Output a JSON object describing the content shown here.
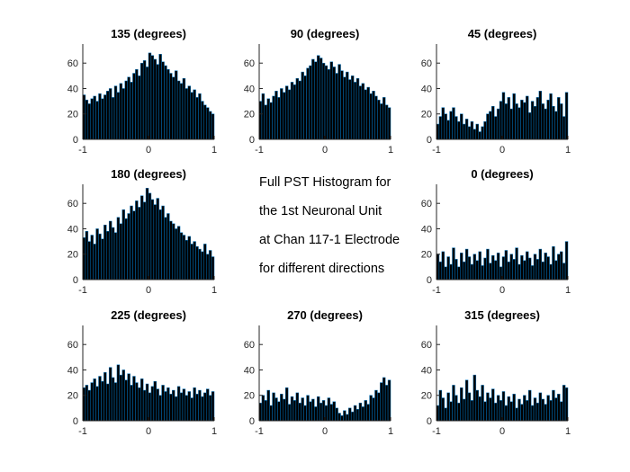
{
  "figure": {
    "center_text": [
      "Full PST Histogram for",
      "the 1st Neuronal Unit",
      "at Chan 117-1 Electrode",
      "for different directions"
    ]
  },
  "chart_data": [
    {
      "type": "bar",
      "panel": "top-left",
      "title": "135 (degrees)",
      "xlim": [
        -1,
        1
      ],
      "ylim": [
        0,
        75
      ],
      "xticks": [
        "-1",
        "0",
        "1"
      ],
      "yticks": [
        "0",
        "20",
        "40",
        "60"
      ],
      "x": [
        -0.98,
        -0.94,
        -0.9,
        -0.86,
        -0.82,
        -0.78,
        -0.74,
        -0.7,
        -0.66,
        -0.62,
        -0.58,
        -0.54,
        -0.5,
        -0.46,
        -0.42,
        -0.38,
        -0.34,
        -0.3,
        -0.26,
        -0.22,
        -0.18,
        -0.14,
        -0.1,
        -0.06,
        -0.02,
        0.02,
        0.06,
        0.1,
        0.14,
        0.18,
        0.22,
        0.26,
        0.3,
        0.34,
        0.38,
        0.42,
        0.46,
        0.5,
        0.54,
        0.58,
        0.62,
        0.66,
        0.7,
        0.74,
        0.78,
        0.82,
        0.86,
        0.9,
        0.94,
        0.98
      ],
      "values": [
        35,
        31,
        28,
        32,
        34,
        30,
        36,
        32,
        35,
        38,
        40,
        33,
        42,
        37,
        44,
        40,
        46,
        49,
        45,
        52,
        55,
        50,
        60,
        62,
        57,
        68,
        66,
        63,
        59,
        67,
        61,
        58,
        55,
        52,
        49,
        54,
        46,
        44,
        48,
        40,
        42,
        37,
        39,
        33,
        36,
        30,
        27,
        25,
        22,
        20
      ]
    },
    {
      "type": "bar",
      "panel": "top-center",
      "title": "90 (degrees)",
      "xlim": [
        -1,
        1
      ],
      "ylim": [
        0,
        75
      ],
      "xticks": [
        "-1",
        "0",
        "1"
      ],
      "yticks": [
        "0",
        "20",
        "40",
        "60"
      ],
      "x": [
        -0.98,
        -0.94,
        -0.9,
        -0.86,
        -0.82,
        -0.78,
        -0.74,
        -0.7,
        -0.66,
        -0.62,
        -0.58,
        -0.54,
        -0.5,
        -0.46,
        -0.42,
        -0.38,
        -0.34,
        -0.3,
        -0.26,
        -0.22,
        -0.18,
        -0.14,
        -0.1,
        -0.06,
        -0.02,
        0.02,
        0.06,
        0.1,
        0.14,
        0.18,
        0.22,
        0.26,
        0.3,
        0.34,
        0.38,
        0.42,
        0.46,
        0.5,
        0.54,
        0.58,
        0.62,
        0.66,
        0.7,
        0.74,
        0.78,
        0.82,
        0.86,
        0.9,
        0.94,
        0.98
      ],
      "values": [
        30,
        36,
        27,
        32,
        29,
        34,
        38,
        33,
        40,
        37,
        42,
        39,
        45,
        43,
        48,
        46,
        53,
        50,
        56,
        58,
        63,
        61,
        66,
        64,
        60,
        58,
        55,
        61,
        57,
        52,
        59,
        54,
        49,
        53,
        47,
        50,
        45,
        48,
        42,
        44,
        39,
        41,
        36,
        38,
        34,
        31,
        28,
        33,
        27,
        25
      ]
    },
    {
      "type": "bar",
      "panel": "top-right",
      "title": "45 (degrees)",
      "xlim": [
        -1,
        1
      ],
      "ylim": [
        0,
        75
      ],
      "xticks": [
        "-1",
        "0",
        "1"
      ],
      "yticks": [
        "0",
        "20",
        "40",
        "60"
      ],
      "x": [
        -0.98,
        -0.94,
        -0.9,
        -0.86,
        -0.82,
        -0.78,
        -0.74,
        -0.7,
        -0.66,
        -0.62,
        -0.58,
        -0.54,
        -0.5,
        -0.46,
        -0.42,
        -0.38,
        -0.34,
        -0.3,
        -0.26,
        -0.22,
        -0.18,
        -0.14,
        -0.1,
        -0.06,
        -0.02,
        0.02,
        0.06,
        0.1,
        0.14,
        0.18,
        0.22,
        0.26,
        0.3,
        0.34,
        0.38,
        0.42,
        0.46,
        0.5,
        0.54,
        0.58,
        0.62,
        0.66,
        0.7,
        0.74,
        0.78,
        0.82,
        0.86,
        0.9,
        0.94,
        0.98
      ],
      "values": [
        12,
        18,
        25,
        20,
        15,
        22,
        25,
        18,
        14,
        20,
        12,
        16,
        10,
        14,
        8,
        12,
        6,
        10,
        14,
        20,
        22,
        26,
        18,
        24,
        30,
        37,
        28,
        33,
        24,
        36,
        28,
        25,
        31,
        29,
        34,
        21,
        30,
        26,
        33,
        38,
        28,
        24,
        31,
        36,
        26,
        22,
        33,
        28,
        18,
        37
      ]
    },
    {
      "type": "bar",
      "panel": "middle-left",
      "title": "180 (degrees)",
      "xlim": [
        -1,
        1
      ],
      "ylim": [
        0,
        75
      ],
      "xticks": [
        "-1",
        "0",
        "1"
      ],
      "yticks": [
        "0",
        "20",
        "40",
        "60"
      ],
      "x": [
        -0.98,
        -0.94,
        -0.9,
        -0.86,
        -0.82,
        -0.78,
        -0.74,
        -0.7,
        -0.66,
        -0.62,
        -0.58,
        -0.54,
        -0.5,
        -0.46,
        -0.42,
        -0.38,
        -0.34,
        -0.3,
        -0.26,
        -0.22,
        -0.18,
        -0.14,
        -0.1,
        -0.06,
        -0.02,
        0.02,
        0.06,
        0.1,
        0.14,
        0.18,
        0.22,
        0.26,
        0.3,
        0.34,
        0.38,
        0.42,
        0.46,
        0.5,
        0.54,
        0.58,
        0.62,
        0.66,
        0.7,
        0.74,
        0.78,
        0.82,
        0.86,
        0.9,
        0.94,
        0.98
      ],
      "values": [
        33,
        38,
        30,
        35,
        28,
        40,
        36,
        32,
        43,
        38,
        46,
        41,
        37,
        49,
        44,
        55,
        48,
        52,
        58,
        54,
        62,
        57,
        66,
        61,
        72,
        68,
        63,
        59,
        64,
        55,
        58,
        49,
        52,
        46,
        44,
        40,
        42,
        37,
        35,
        31,
        34,
        28,
        30,
        26,
        24,
        22,
        28,
        20,
        23,
        18
      ]
    },
    {
      "type": "bar",
      "panel": "middle-right",
      "title": "0 (degrees)",
      "xlim": [
        -1,
        1
      ],
      "ylim": [
        0,
        75
      ],
      "xticks": [
        "-1",
        "0",
        "1"
      ],
      "yticks": [
        "0",
        "20",
        "40",
        "60"
      ],
      "x": [
        -0.98,
        -0.94,
        -0.9,
        -0.86,
        -0.82,
        -0.78,
        -0.74,
        -0.7,
        -0.66,
        -0.62,
        -0.58,
        -0.54,
        -0.5,
        -0.46,
        -0.42,
        -0.38,
        -0.34,
        -0.3,
        -0.26,
        -0.22,
        -0.18,
        -0.14,
        -0.1,
        -0.06,
        -0.02,
        0.02,
        0.06,
        0.1,
        0.14,
        0.18,
        0.22,
        0.26,
        0.3,
        0.34,
        0.38,
        0.42,
        0.46,
        0.5,
        0.54,
        0.58,
        0.62,
        0.66,
        0.7,
        0.74,
        0.78,
        0.82,
        0.86,
        0.9,
        0.94,
        0.98
      ],
      "values": [
        20,
        14,
        22,
        10,
        18,
        12,
        25,
        16,
        10,
        21,
        14,
        24,
        18,
        12,
        20,
        15,
        22,
        11,
        17,
        24,
        13,
        19,
        15,
        21,
        10,
        18,
        23,
        14,
        20,
        16,
        25,
        12,
        19,
        15,
        22,
        17,
        11,
        20,
        16,
        24,
        14,
        21,
        18,
        12,
        26,
        15,
        20,
        22,
        13,
        30
      ]
    },
    {
      "type": "bar",
      "panel": "bottom-left",
      "title": "225 (degrees)",
      "xlim": [
        -1,
        1
      ],
      "ylim": [
        0,
        75
      ],
      "xticks": [
        "-1",
        "0",
        "1"
      ],
      "yticks": [
        "0",
        "20",
        "40",
        "60"
      ],
      "x": [
        -0.98,
        -0.94,
        -0.9,
        -0.86,
        -0.82,
        -0.78,
        -0.74,
        -0.7,
        -0.66,
        -0.62,
        -0.58,
        -0.54,
        -0.5,
        -0.46,
        -0.42,
        -0.38,
        -0.34,
        -0.3,
        -0.26,
        -0.22,
        -0.18,
        -0.14,
        -0.1,
        -0.06,
        -0.02,
        0.02,
        0.06,
        0.1,
        0.14,
        0.18,
        0.22,
        0.26,
        0.3,
        0.34,
        0.38,
        0.42,
        0.46,
        0.5,
        0.54,
        0.58,
        0.62,
        0.66,
        0.7,
        0.74,
        0.78,
        0.82,
        0.86,
        0.9,
        0.94,
        0.98
      ],
      "values": [
        26,
        28,
        24,
        30,
        33,
        27,
        35,
        31,
        38,
        29,
        42,
        34,
        30,
        44,
        36,
        40,
        32,
        37,
        28,
        35,
        30,
        26,
        33,
        24,
        29,
        22,
        27,
        31,
        25,
        20,
        28,
        23,
        26,
        21,
        24,
        19,
        27,
        22,
        25,
        20,
        23,
        18,
        26,
        21,
        24,
        19,
        22,
        25,
        20,
        23
      ]
    },
    {
      "type": "bar",
      "panel": "bottom-center",
      "title": "270 (degrees)",
      "xlim": [
        -1,
        1
      ],
      "ylim": [
        0,
        75
      ],
      "xticks": [
        "-1",
        "0",
        "1"
      ],
      "yticks": [
        "0",
        "20",
        "40",
        "60"
      ],
      "x": [
        -0.98,
        -0.94,
        -0.9,
        -0.86,
        -0.82,
        -0.78,
        -0.74,
        -0.7,
        -0.66,
        -0.62,
        -0.58,
        -0.54,
        -0.5,
        -0.46,
        -0.42,
        -0.38,
        -0.34,
        -0.3,
        -0.26,
        -0.22,
        -0.18,
        -0.14,
        -0.1,
        -0.06,
        -0.02,
        0.02,
        0.06,
        0.1,
        0.14,
        0.18,
        0.22,
        0.26,
        0.3,
        0.34,
        0.38,
        0.42,
        0.46,
        0.5,
        0.54,
        0.58,
        0.62,
        0.66,
        0.7,
        0.74,
        0.78,
        0.82,
        0.86,
        0.9,
        0.94,
        0.98
      ],
      "values": [
        14,
        20,
        16,
        24,
        12,
        22,
        18,
        15,
        21,
        17,
        26,
        13,
        19,
        16,
        22,
        14,
        18,
        12,
        20,
        15,
        17,
        11,
        19,
        14,
        16,
        12,
        18,
        13,
        15,
        10,
        6,
        4,
        8,
        5,
        10,
        7,
        12,
        9,
        14,
        11,
        16,
        13,
        20,
        18,
        24,
        22,
        30,
        34,
        28,
        32
      ]
    },
    {
      "type": "bar",
      "panel": "bottom-right",
      "title": "315 (degrees)",
      "xlim": [
        -1,
        1
      ],
      "ylim": [
        0,
        75
      ],
      "xticks": [
        "-1",
        "0",
        "1"
      ],
      "yticks": [
        "0",
        "20",
        "40",
        "60"
      ],
      "x": [
        -0.98,
        -0.94,
        -0.9,
        -0.86,
        -0.82,
        -0.78,
        -0.74,
        -0.7,
        -0.66,
        -0.62,
        -0.58,
        -0.54,
        -0.5,
        -0.46,
        -0.42,
        -0.38,
        -0.34,
        -0.3,
        -0.26,
        -0.22,
        -0.18,
        -0.14,
        -0.1,
        -0.06,
        -0.02,
        0.02,
        0.06,
        0.1,
        0.14,
        0.18,
        0.22,
        0.26,
        0.3,
        0.34,
        0.38,
        0.42,
        0.46,
        0.5,
        0.54,
        0.58,
        0.62,
        0.66,
        0.7,
        0.74,
        0.78,
        0.82,
        0.86,
        0.9,
        0.94,
        0.98
      ],
      "values": [
        12,
        24,
        18,
        10,
        22,
        15,
        28,
        20,
        14,
        26,
        17,
        32,
        22,
        16,
        36,
        24,
        19,
        28,
        15,
        22,
        18,
        25,
        14,
        20,
        16,
        23,
        12,
        19,
        15,
        21,
        10,
        17,
        13,
        20,
        16,
        24,
        12,
        18,
        14,
        22,
        17,
        13,
        20,
        16,
        24,
        18,
        21,
        15,
        28,
        26
      ]
    }
  ]
}
